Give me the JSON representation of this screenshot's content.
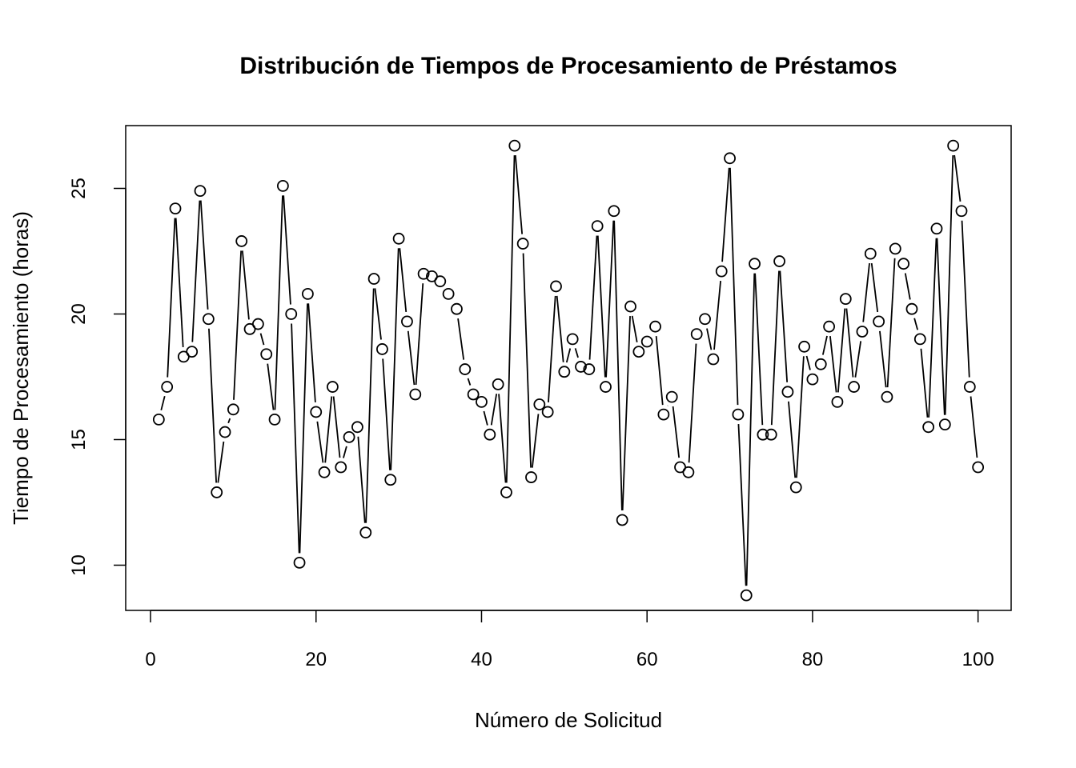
{
  "chart_data": {
    "type": "line",
    "title": "Distribución de Tiempos de Procesamiento de Préstamos",
    "xlabel": "Número de Solicitud",
    "ylabel": "Tiempo de Procesamiento (horas)",
    "xlim": [
      -3,
      104
    ],
    "ylim": [
      8.2,
      27.5
    ],
    "xticks": [
      0,
      20,
      40,
      60,
      80,
      100
    ],
    "yticks": [
      10,
      15,
      20,
      25
    ],
    "grid": false,
    "legend": "none",
    "line_color": "#000000",
    "series": [
      {
        "x": [
          1,
          2,
          3,
          4,
          5,
          6,
          7,
          8,
          9,
          10,
          11,
          12,
          13,
          14,
          15,
          16,
          17,
          18,
          19,
          20,
          21,
          22,
          23,
          24,
          25,
          26,
          27,
          28,
          29,
          30,
          31,
          32,
          33,
          34,
          35,
          36,
          37,
          38,
          39,
          40,
          41,
          42,
          43,
          44,
          45,
          46,
          47,
          48,
          49,
          50,
          51,
          52,
          53,
          54,
          55,
          56,
          57,
          58,
          59,
          60,
          61,
          62,
          63,
          64,
          65,
          66,
          67,
          68,
          69,
          70,
          71,
          72,
          73,
          74,
          75,
          76,
          77,
          78,
          79,
          80,
          81,
          82,
          83,
          84,
          85,
          86,
          87,
          88,
          89,
          90,
          91,
          92,
          93,
          94,
          95,
          96,
          97,
          98,
          99,
          100
        ],
        "values": [
          15.8,
          17.1,
          24.2,
          18.3,
          18.5,
          24.9,
          19.8,
          12.9,
          15.3,
          16.2,
          22.9,
          19.4,
          19.6,
          18.4,
          15.8,
          25.1,
          20.0,
          10.1,
          20.8,
          16.1,
          13.7,
          17.1,
          13.9,
          15.1,
          15.5,
          11.3,
          21.4,
          18.6,
          13.4,
          23.0,
          19.7,
          16.8,
          21.6,
          21.5,
          21.3,
          20.8,
          20.2,
          17.8,
          16.8,
          16.5,
          15.2,
          17.2,
          12.9,
          26.7,
          22.8,
          13.5,
          16.4,
          16.1,
          21.1,
          17.7,
          19.0,
          17.9,
          17.8,
          23.5,
          17.1,
          24.1,
          11.8,
          20.3,
          18.5,
          18.9,
          19.5,
          16.0,
          16.7,
          13.9,
          13.7,
          19.2,
          19.8,
          18.2,
          21.7,
          26.2,
          16.0,
          8.8,
          22.0,
          15.2,
          15.2,
          22.1,
          16.9,
          13.1,
          18.7,
          17.4,
          18.0,
          19.5,
          16.5,
          20.6,
          17.1,
          19.3,
          22.4,
          19.7,
          16.7,
          22.6,
          22.0,
          20.2,
          19.0,
          15.5,
          23.4,
          15.6,
          26.7,
          24.1,
          17.1,
          13.9
        ]
      }
    ]
  }
}
